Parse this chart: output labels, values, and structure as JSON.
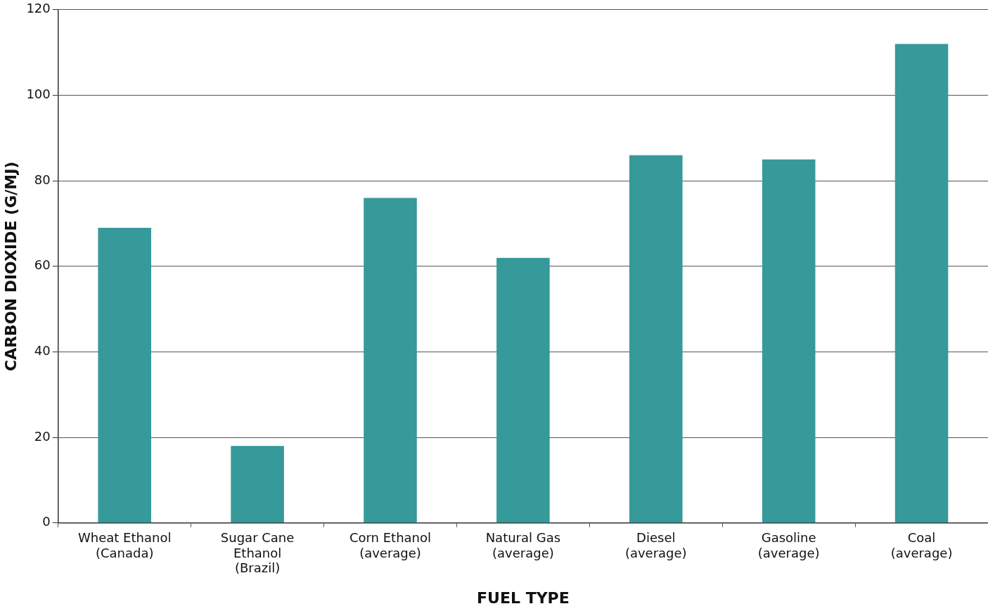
{
  "chart_data": {
    "type": "bar",
    "xlabel": "FUEL TYPE",
    "ylabel": "CARBON DIOXIDE (G/MJ)",
    "categories": [
      "Wheat Ethanol (Canada)",
      "Sugar Cane Ethanol (Brazil)",
      "Corn Ethanol (average)",
      "Natural Gas (average)",
      "Diesel (average)",
      "Gasoline (average)",
      "Coal (average)"
    ],
    "values": [
      69,
      18,
      76,
      62,
      86,
      85,
      112
    ],
    "color": "#36999a",
    "ylim": [
      0,
      120
    ],
    "yticks": [
      0,
      20,
      40,
      60,
      80,
      100,
      120
    ],
    "grid": "y",
    "legend": false
  }
}
